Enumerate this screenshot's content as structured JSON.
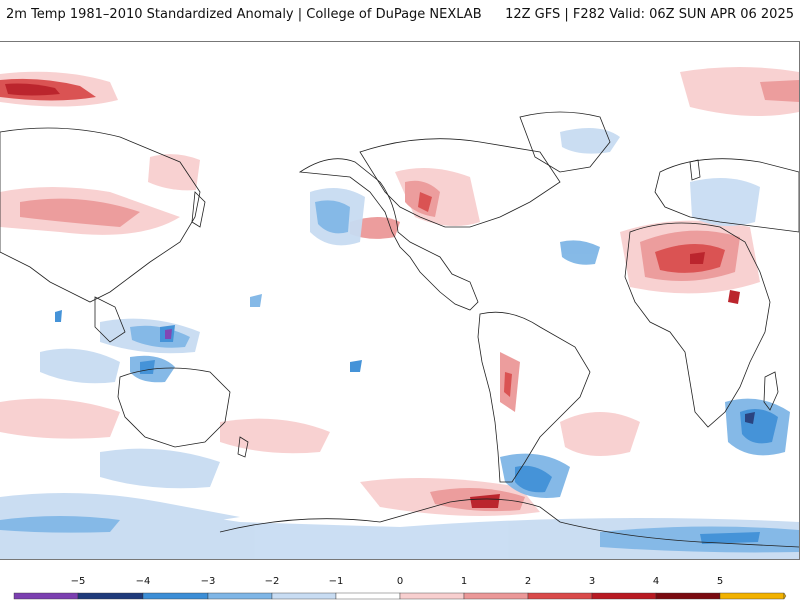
{
  "header": {
    "title_left": "2m Temp 1981–2010 Standardized Anomaly | College of DuPage NEXLAB",
    "title_right": "12Z GFS | F282 Valid: 06Z SUN APR 06 2025"
  },
  "map": {
    "projection": "equirectangular",
    "centered_on": "180",
    "field": "2m temperature standardized anomaly"
  },
  "colorbar": {
    "ticks": [
      "−5",
      "−4",
      "−3",
      "−2",
      "−1",
      "0",
      "1",
      "2",
      "3",
      "4",
      "5"
    ],
    "colors": [
      "#7b3fb0",
      "#1f3a7a",
      "#3c8ed6",
      "#7fb6e6",
      "#c8dcf2",
      "#ffffff",
      "#f8cfcf",
      "#eb9898",
      "#d94a4a",
      "#b81a22",
      "#7a0a10",
      "#f2b200"
    ]
  }
}
